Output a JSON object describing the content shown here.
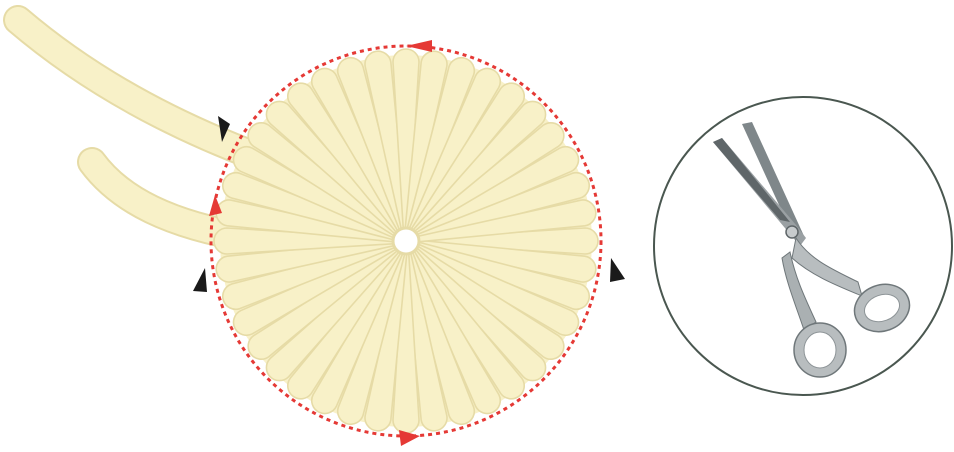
{
  "diagram": {
    "petal_count": 40,
    "colors": {
      "petal_fill": "#f8f1c8",
      "petal_stroke": "#e6dba6",
      "cut_line": "#e53935",
      "marker_red": "#e53935",
      "marker_black": "#1a1a1a",
      "inset_stroke": "#4a5750",
      "blade": "#9aa0a3",
      "blade_dark": "#5f6669",
      "handle": "#b8bdbf"
    },
    "icons": {
      "inset": "scissors-icon",
      "markers": "triangle-marker-icon"
    }
  }
}
